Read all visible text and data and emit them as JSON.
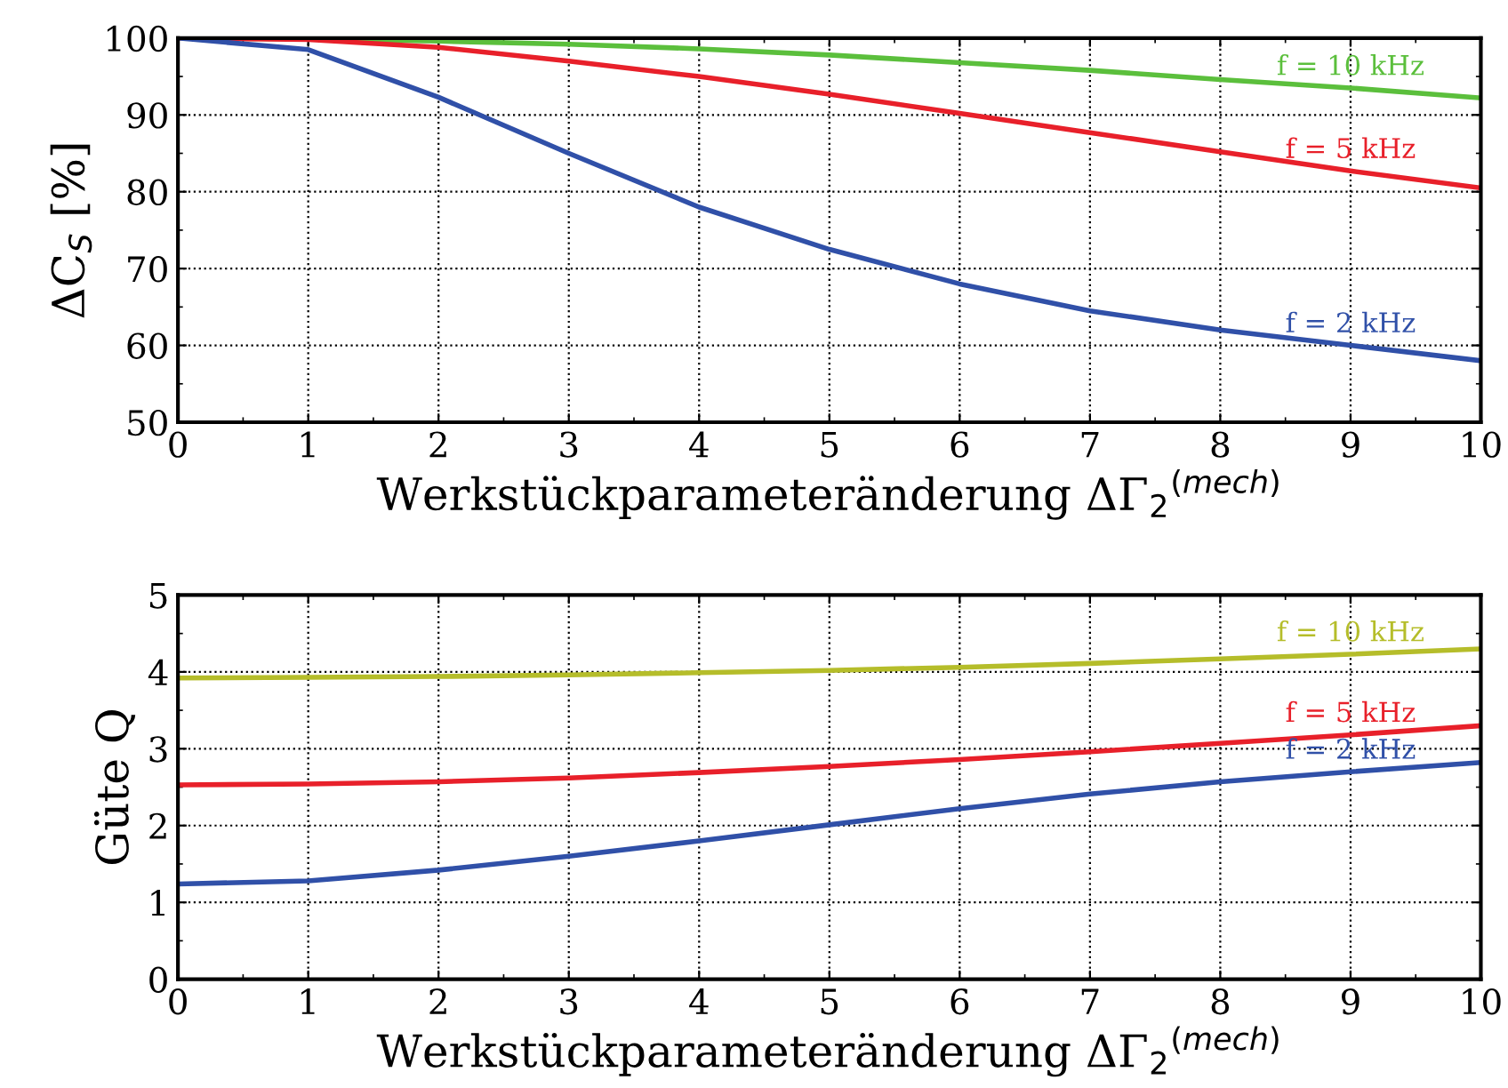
{
  "chart_data": [
    {
      "type": "line",
      "ylabel": "ΔC$_{S}$ [%]",
      "xlabel": "Werkstückparameteränderung ΔΓ$_{2}$$^{(mech)}$",
      "x": [
        0,
        1,
        2,
        3,
        4,
        5,
        6,
        7,
        8,
        9,
        10
      ],
      "xlim": [
        0,
        10
      ],
      "xticks": [
        0,
        1,
        2,
        3,
        4,
        5,
        6,
        7,
        8,
        9,
        10
      ],
      "ylim": [
        50,
        100
      ],
      "yticks": [
        50,
        60,
        70,
        80,
        90,
        100
      ],
      "grid": true,
      "line_style": "solid",
      "marker": "none",
      "series": [
        {
          "name": "f = 10 kHz",
          "color": "#5bbf3c",
          "values": [
            100,
            99.9,
            99.6,
            99.2,
            98.6,
            97.8,
            96.8,
            95.8,
            94.6,
            93.5,
            92.2
          ]
        },
        {
          "name": "f = 5 kHz",
          "color": "#e8202a",
          "values": [
            100,
            99.8,
            98.8,
            97,
            95,
            92.7,
            90.2,
            87.7,
            85.2,
            82.7,
            80.5
          ]
        },
        {
          "name": "f = 2 kHz",
          "color": "#3050a8",
          "values": [
            100,
            98.5,
            92.3,
            85,
            78,
            72.5,
            68,
            64.5,
            62,
            60,
            58
          ]
        }
      ]
    },
    {
      "type": "line",
      "ylabel": "Güte Q",
      "xlabel": "Werkstückparameteränderung ΔΓ$_{2}$$^{(mech)}$",
      "x": [
        0,
        1,
        2,
        3,
        4,
        5,
        6,
        7,
        8,
        9,
        10
      ],
      "xlim": [
        0,
        10
      ],
      "xticks": [
        0,
        1,
        2,
        3,
        4,
        5,
        6,
        7,
        8,
        9,
        10
      ],
      "ylim": [
        0,
        5
      ],
      "yticks": [
        0,
        1,
        2,
        3,
        4,
        5
      ],
      "grid": true,
      "line_style": "solid",
      "marker": "none",
      "series": [
        {
          "name": "f = 10 kHz",
          "color": "#b5bd2a",
          "values": [
            3.92,
            3.93,
            3.94,
            3.96,
            3.99,
            4.02,
            4.06,
            4.11,
            4.17,
            4.23,
            4.3
          ]
        },
        {
          "name": "f = 5 kHz",
          "color": "#e8202a",
          "values": [
            2.53,
            2.54,
            2.57,
            2.62,
            2.69,
            2.77,
            2.86,
            2.96,
            3.07,
            3.18,
            3.3
          ]
        },
        {
          "name": "f = 2 kHz",
          "color": "#3050a8",
          "values": [
            1.24,
            1.28,
            1.42,
            1.6,
            1.8,
            2.01,
            2.22,
            2.41,
            2.57,
            2.7,
            2.82
          ]
        }
      ]
    }
  ]
}
